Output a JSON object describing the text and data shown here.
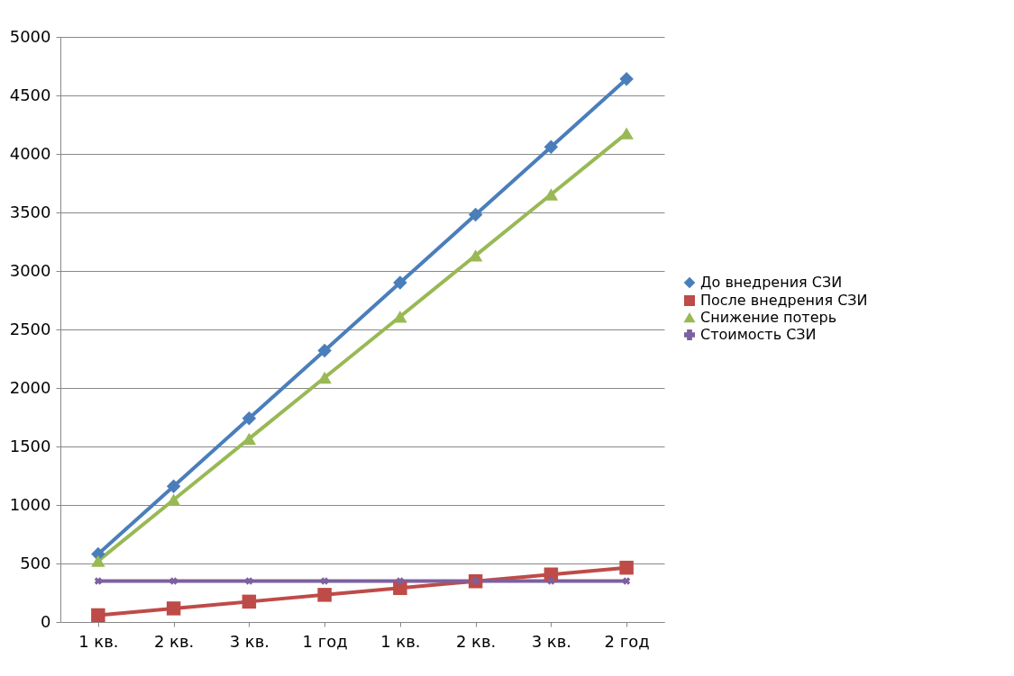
{
  "chart_data": {
    "type": "line",
    "categories": [
      "1 кв.",
      "2 кв.",
      "3 кв.",
      "1 год",
      "1 кв.",
      "2 кв.",
      "3 кв.",
      "2 год"
    ],
    "series": [
      {
        "name": "До внедрения СЗИ",
        "color": "#4a7ebb",
        "marker": "diamond",
        "values": [
          580,
          1160,
          1740,
          2320,
          2900,
          3480,
          4060,
          4640
        ]
      },
      {
        "name": "После внедрения СЗИ",
        "color": "#be4b48",
        "marker": "square",
        "values": [
          58,
          116,
          174,
          232,
          290,
          348,
          406,
          464
        ]
      },
      {
        "name": "Снижение потерь",
        "color": "#98b954",
        "marker": "triangle",
        "values": [
          522,
          1044,
          1566,
          2088,
          2610,
          3132,
          3654,
          4176
        ]
      },
      {
        "name": "Стоимость СЗИ",
        "color": "#7d60a0",
        "marker": "cross",
        "values": [
          350,
          350,
          350,
          350,
          350,
          350,
          350,
          350
        ]
      }
    ],
    "ylim": [
      0,
      5000
    ],
    "yticks": [
      0,
      500,
      1000,
      1500,
      2000,
      2500,
      3000,
      3500,
      4000,
      4500,
      5000
    ],
    "grid": "y",
    "legend": "right"
  }
}
